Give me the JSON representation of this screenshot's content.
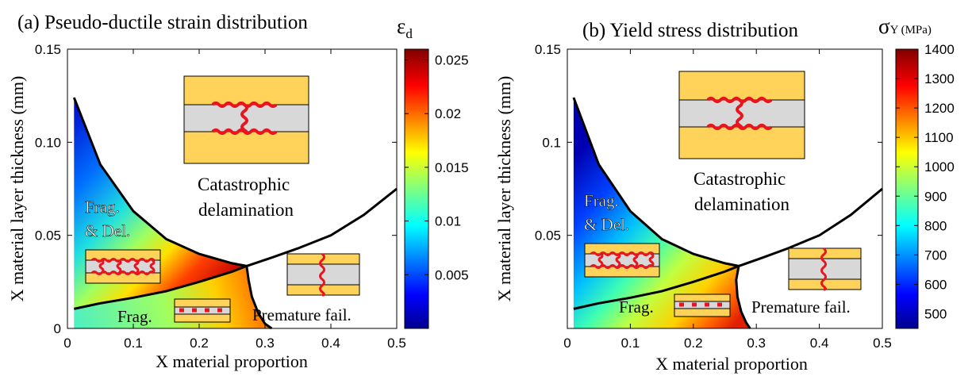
{
  "chart_data": [
    {
      "type": "heatmap",
      "title": "(a) Pseudo-ductile strain distribution",
      "xlabel": "X material proportion",
      "ylabel": "X material layer thickness (mm)",
      "xlim": [
        0,
        0.5
      ],
      "ylim": [
        0,
        0.15
      ],
      "xticks": [
        0,
        0.1,
        0.2,
        0.3,
        0.4,
        0.5
      ],
      "xtick_labels": [
        "0",
        "0.1",
        "0.2",
        "0.3",
        "0.4",
        "0.5"
      ],
      "yticks": [
        0,
        0.05,
        0.1,
        0.15
      ],
      "ytick_labels": [
        "0",
        "0.05",
        "0.10",
        "0.15"
      ],
      "colorbar": {
        "label": "ε",
        "label_sub": "d",
        "min": 0,
        "max": 0.026,
        "ticks": [
          0.005,
          0.01,
          0.015,
          0.02,
          0.025
        ],
        "tick_labels": [
          "0.005",
          "0.01",
          "0.015",
          "0.02",
          "0.025"
        ],
        "colormap": "jet"
      },
      "boundaries": {
        "catastrophic_delamination_curve": [
          [
            0.01,
            0.124
          ],
          [
            0.05,
            0.088
          ],
          [
            0.1,
            0.063
          ],
          [
            0.15,
            0.048
          ],
          [
            0.2,
            0.04
          ],
          [
            0.25,
            0.035
          ],
          [
            0.272,
            0.0335
          ]
        ],
        "fragmentation_curve": [
          [
            0.01,
            0.0105
          ],
          [
            0.05,
            0.0135
          ],
          [
            0.1,
            0.0165
          ],
          [
            0.15,
            0.02
          ],
          [
            0.2,
            0.025
          ],
          [
            0.25,
            0.0305
          ],
          [
            0.272,
            0.0335
          ]
        ],
        "premature_failure_curve": [
          [
            0.272,
            0.0335
          ],
          [
            0.275,
            0.026
          ],
          [
            0.28,
            0.017
          ],
          [
            0.29,
            0.008
          ],
          [
            0.3,
            0.0025
          ],
          [
            0.31,
            0
          ]
        ],
        "upper_right_curve": [
          [
            0.272,
            0.0335
          ],
          [
            0.31,
            0.038
          ],
          [
            0.35,
            0.043
          ],
          [
            0.4,
            0.05
          ],
          [
            0.45,
            0.061
          ],
          [
            0.5,
            0.075
          ]
        ]
      },
      "regions": [
        "Frag.\n& Del.",
        "Catastrophic\ndelamination",
        "Frag.",
        "Premature fail."
      ]
    },
    {
      "type": "heatmap",
      "title": "(b) Yield stress distribution",
      "xlabel": "X material proportion",
      "ylabel": "X material layer thickness (mm)",
      "xlim": [
        0,
        0.5
      ],
      "ylim": [
        0,
        0.15
      ],
      "xticks": [
        0,
        0.1,
        0.2,
        0.3,
        0.4,
        0.5
      ],
      "xtick_labels": [
        "0",
        "0.1",
        "0.2",
        "0.3",
        "0.4",
        "0.5"
      ],
      "yticks": [
        0.05,
        0.1,
        0.15
      ],
      "ytick_labels": [
        "0.05",
        "0.1",
        "0.15"
      ],
      "colorbar": {
        "label": "σ",
        "label_sub": "Y (MPa)",
        "min": 450,
        "max": 1400,
        "ticks": [
          500,
          600,
          700,
          800,
          900,
          1000,
          1100,
          1200,
          1300,
          1400
        ],
        "tick_labels": [
          "500",
          "600",
          "700",
          "800",
          "900",
          "1000",
          "1100",
          "1200",
          "1300",
          "1400"
        ],
        "colormap": "jet"
      },
      "boundaries": {
        "catastrophic_delamination_curve": [
          [
            0.01,
            0.124
          ],
          [
            0.05,
            0.088
          ],
          [
            0.1,
            0.063
          ],
          [
            0.15,
            0.048
          ],
          [
            0.2,
            0.04
          ],
          [
            0.25,
            0.035
          ],
          [
            0.272,
            0.0335
          ]
        ],
        "fragmentation_curve": [
          [
            0.01,
            0.0105
          ],
          [
            0.05,
            0.0135
          ],
          [
            0.1,
            0.0165
          ],
          [
            0.15,
            0.02
          ],
          [
            0.2,
            0.025
          ],
          [
            0.25,
            0.0305
          ],
          [
            0.272,
            0.0335
          ]
        ],
        "premature_failure_curve": [
          [
            0.272,
            0.0335
          ],
          [
            0.268,
            0.026
          ],
          [
            0.27,
            0.017
          ],
          [
            0.276,
            0.009
          ],
          [
            0.284,
            0.003
          ],
          [
            0.29,
            0
          ]
        ],
        "upper_right_curve": [
          [
            0.272,
            0.0335
          ],
          [
            0.31,
            0.038
          ],
          [
            0.35,
            0.043
          ],
          [
            0.4,
            0.05
          ],
          [
            0.45,
            0.061
          ],
          [
            0.5,
            0.075
          ]
        ]
      },
      "regions": [
        "Frag.\n& Del.",
        "Catastrophic\ndelamination",
        "Frag.",
        "Premature fail."
      ]
    }
  ],
  "colors": {
    "laminate_outer": "#FFD35A",
    "laminate_core": "#D8D8D8",
    "crack": "#E8141E",
    "boundary": "#000000"
  }
}
